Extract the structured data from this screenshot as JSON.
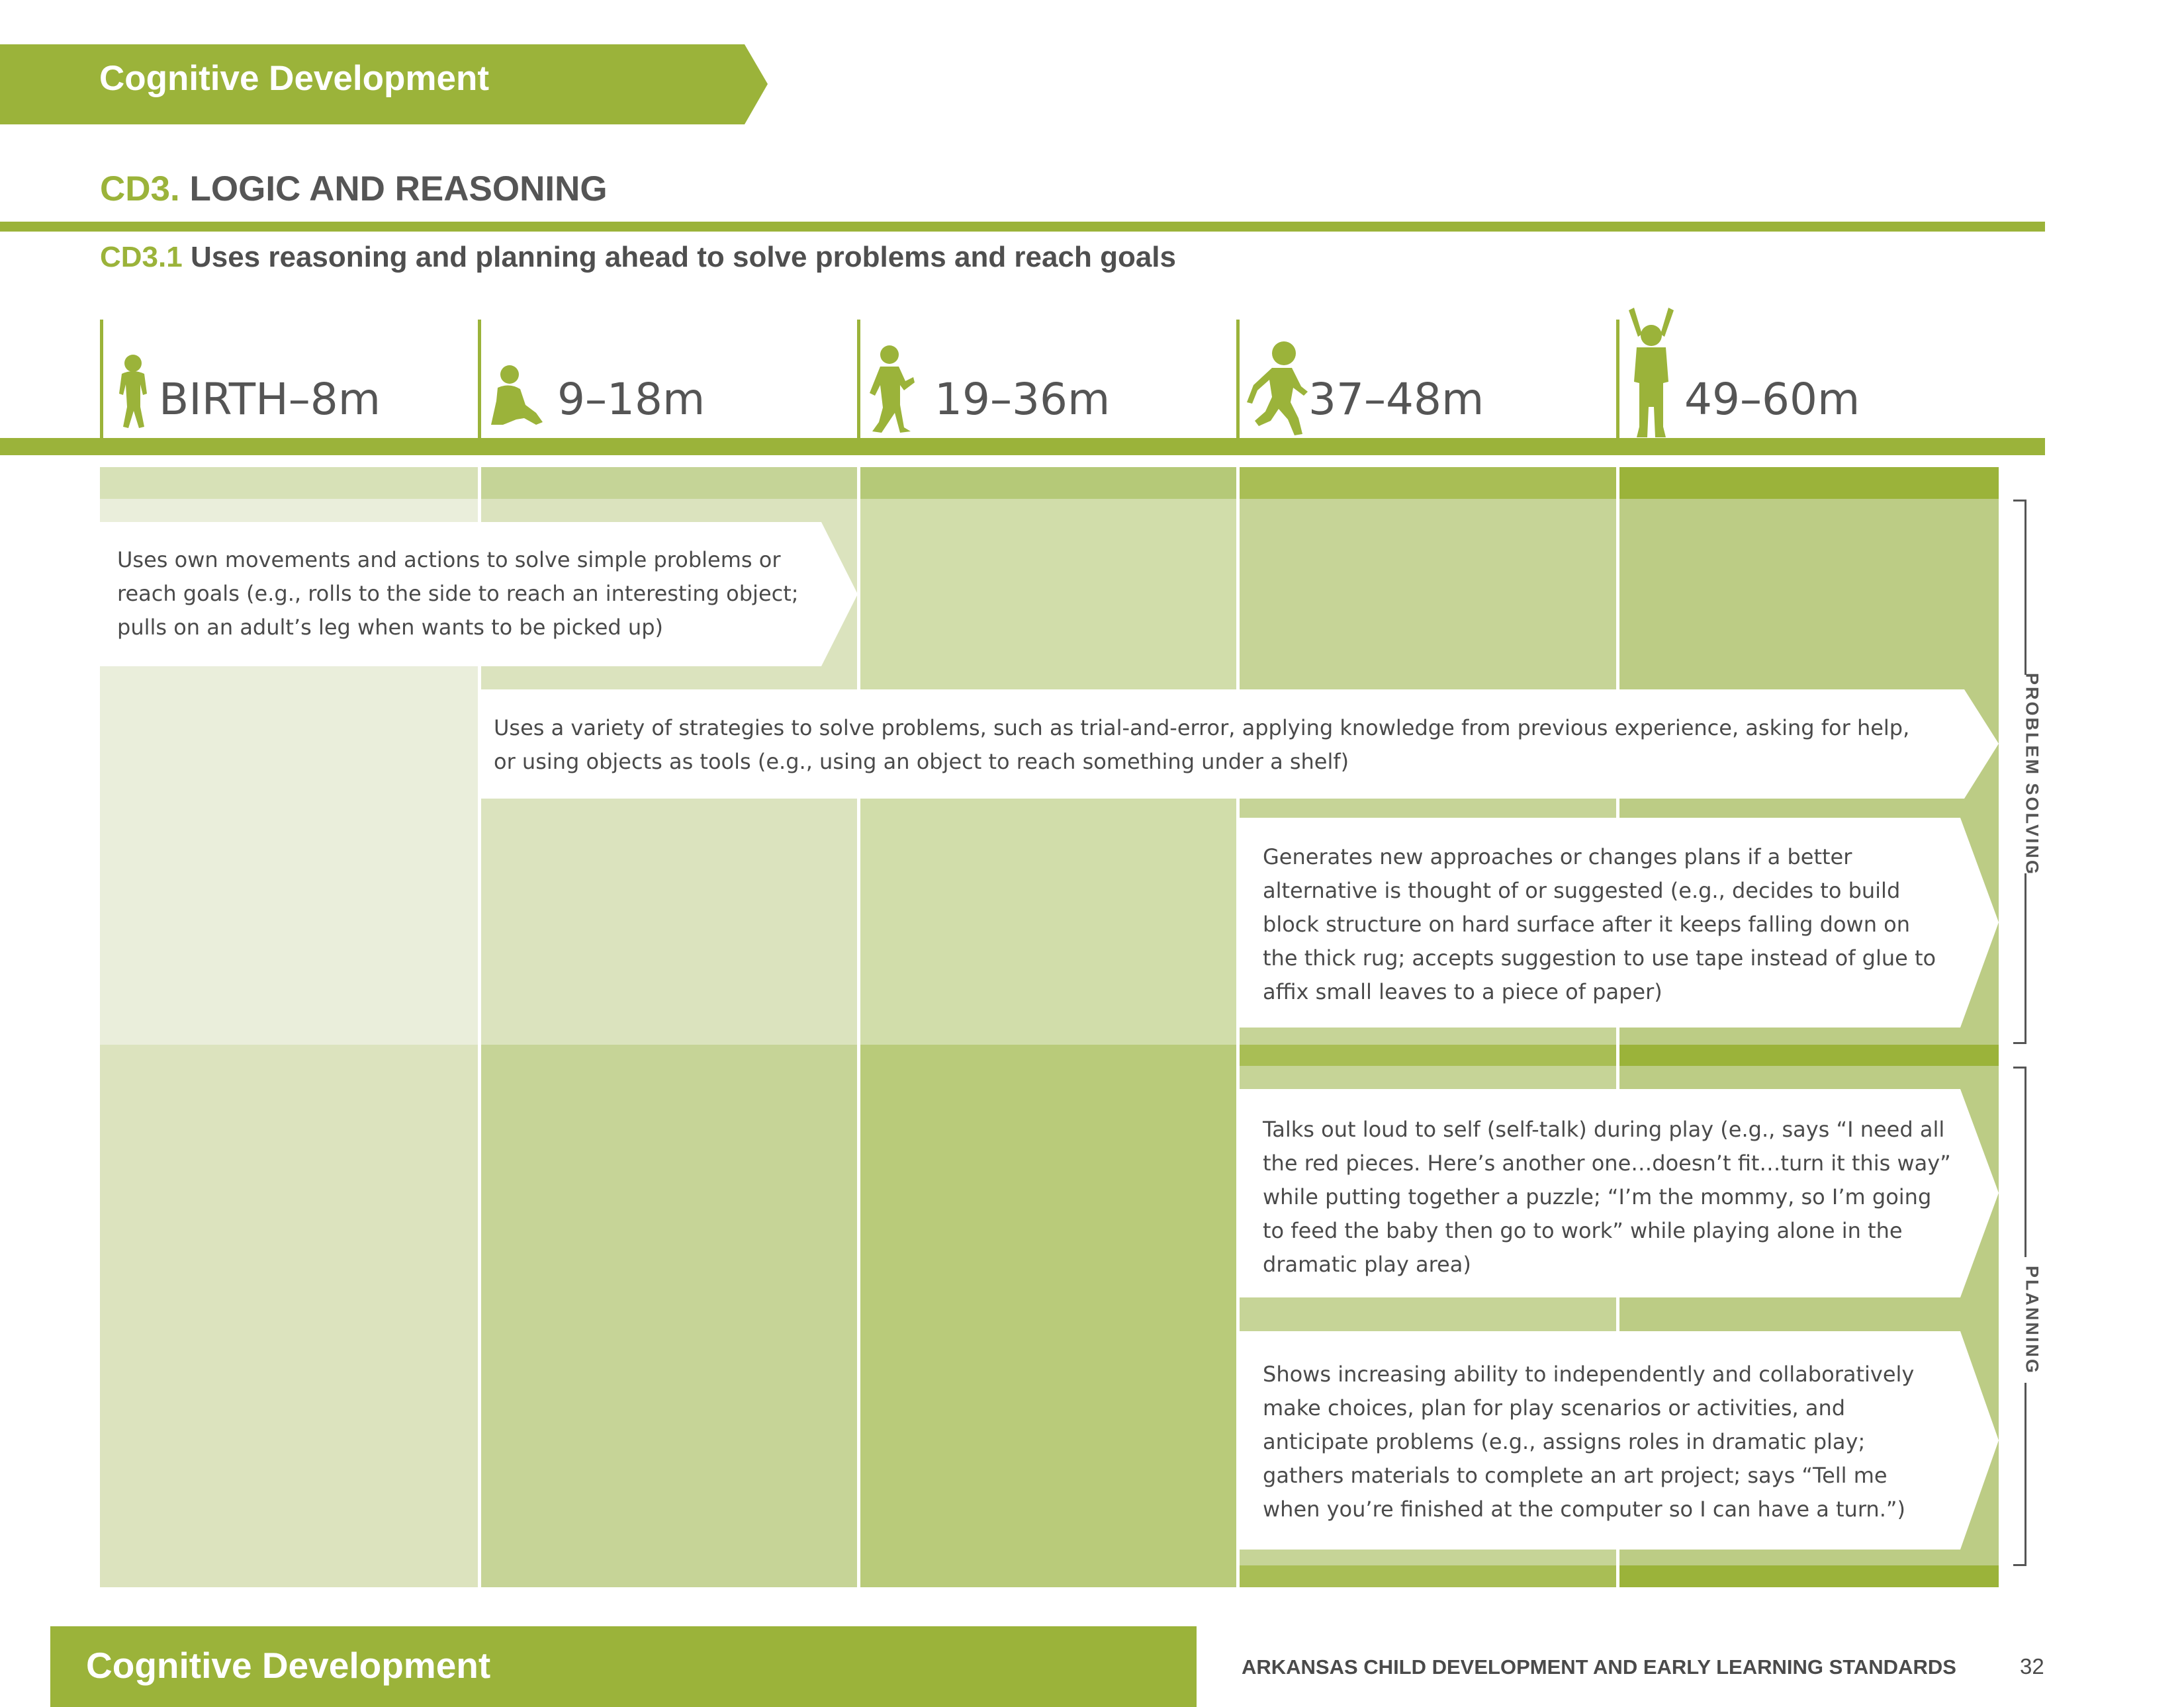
{
  "header": {
    "section": "Cognitive Development"
  },
  "standard": {
    "code": "CD3.",
    "title": "LOGIC AND REASONING"
  },
  "substandard": {
    "code": "CD3.1",
    "title": "Uses reasoning and planning ahead to solve problems and reach goals"
  },
  "age_groups": [
    {
      "label": "BIRTH–8m",
      "icon": "infant-silhouette-icon"
    },
    {
      "label": "9–18m",
      "icon": "sitting-baby-silhouette-icon"
    },
    {
      "label": "19–36m",
      "icon": "toddler-walking-silhouette-icon"
    },
    {
      "label": "37–48m",
      "icon": "child-running-silhouette-icon"
    },
    {
      "label": "49–60m",
      "icon": "child-arms-raised-silhouette-icon"
    }
  ],
  "indicators": [
    {
      "text": "Uses own movements and actions to solve simple problems or reach goals (e.g., rolls to the side to reach an interesting object; pulls on an adult’s leg when wants to be picked up)"
    },
    {
      "text": "Uses a variety of strategies to solve problems, such as trial-and-error, applying knowledge from previous experience, asking for help, or using objects as tools (e.g., using an object to reach something under a shelf)"
    },
    {
      "text": "Generates new approaches or changes plans if a better alternative is thought of or suggested (e.g., decides to build block structure on hard surface after it keeps falling down on the thick rug; accepts suggestion to use tape instead of glue to affix small leaves to a piece of paper)"
    },
    {
      "text": "Talks out loud to self (self-talk) during play (e.g., says “I need all the red pieces. Here’s another one…doesn’t fit…turn it this way” while putting together a puzzle; “I’m the mommy, so I’m going to feed the baby then go to work” while playing alone in the dramatic play area)"
    },
    {
      "text": "Shows increasing ability to independently and collaboratively make choices, plan for play scenarios or activities, and anticipate problems (e.g., assigns roles in dramatic play; gathers materials to complete an art project; says “Tell me when you’re finished at the computer so I can have a turn.”)"
    }
  ],
  "side_labels": {
    "problem_solving": "PROBLEM SOLVING",
    "planning": "PLANNING"
  },
  "footer": {
    "section": "Cognitive Development",
    "title": "ARKANSAS CHILD DEVELOPMENT AND EARLY LEARNING STANDARDS",
    "page": "32"
  },
  "colors": {
    "accent": "#9bb33a",
    "text": "#4a4a4a"
  }
}
